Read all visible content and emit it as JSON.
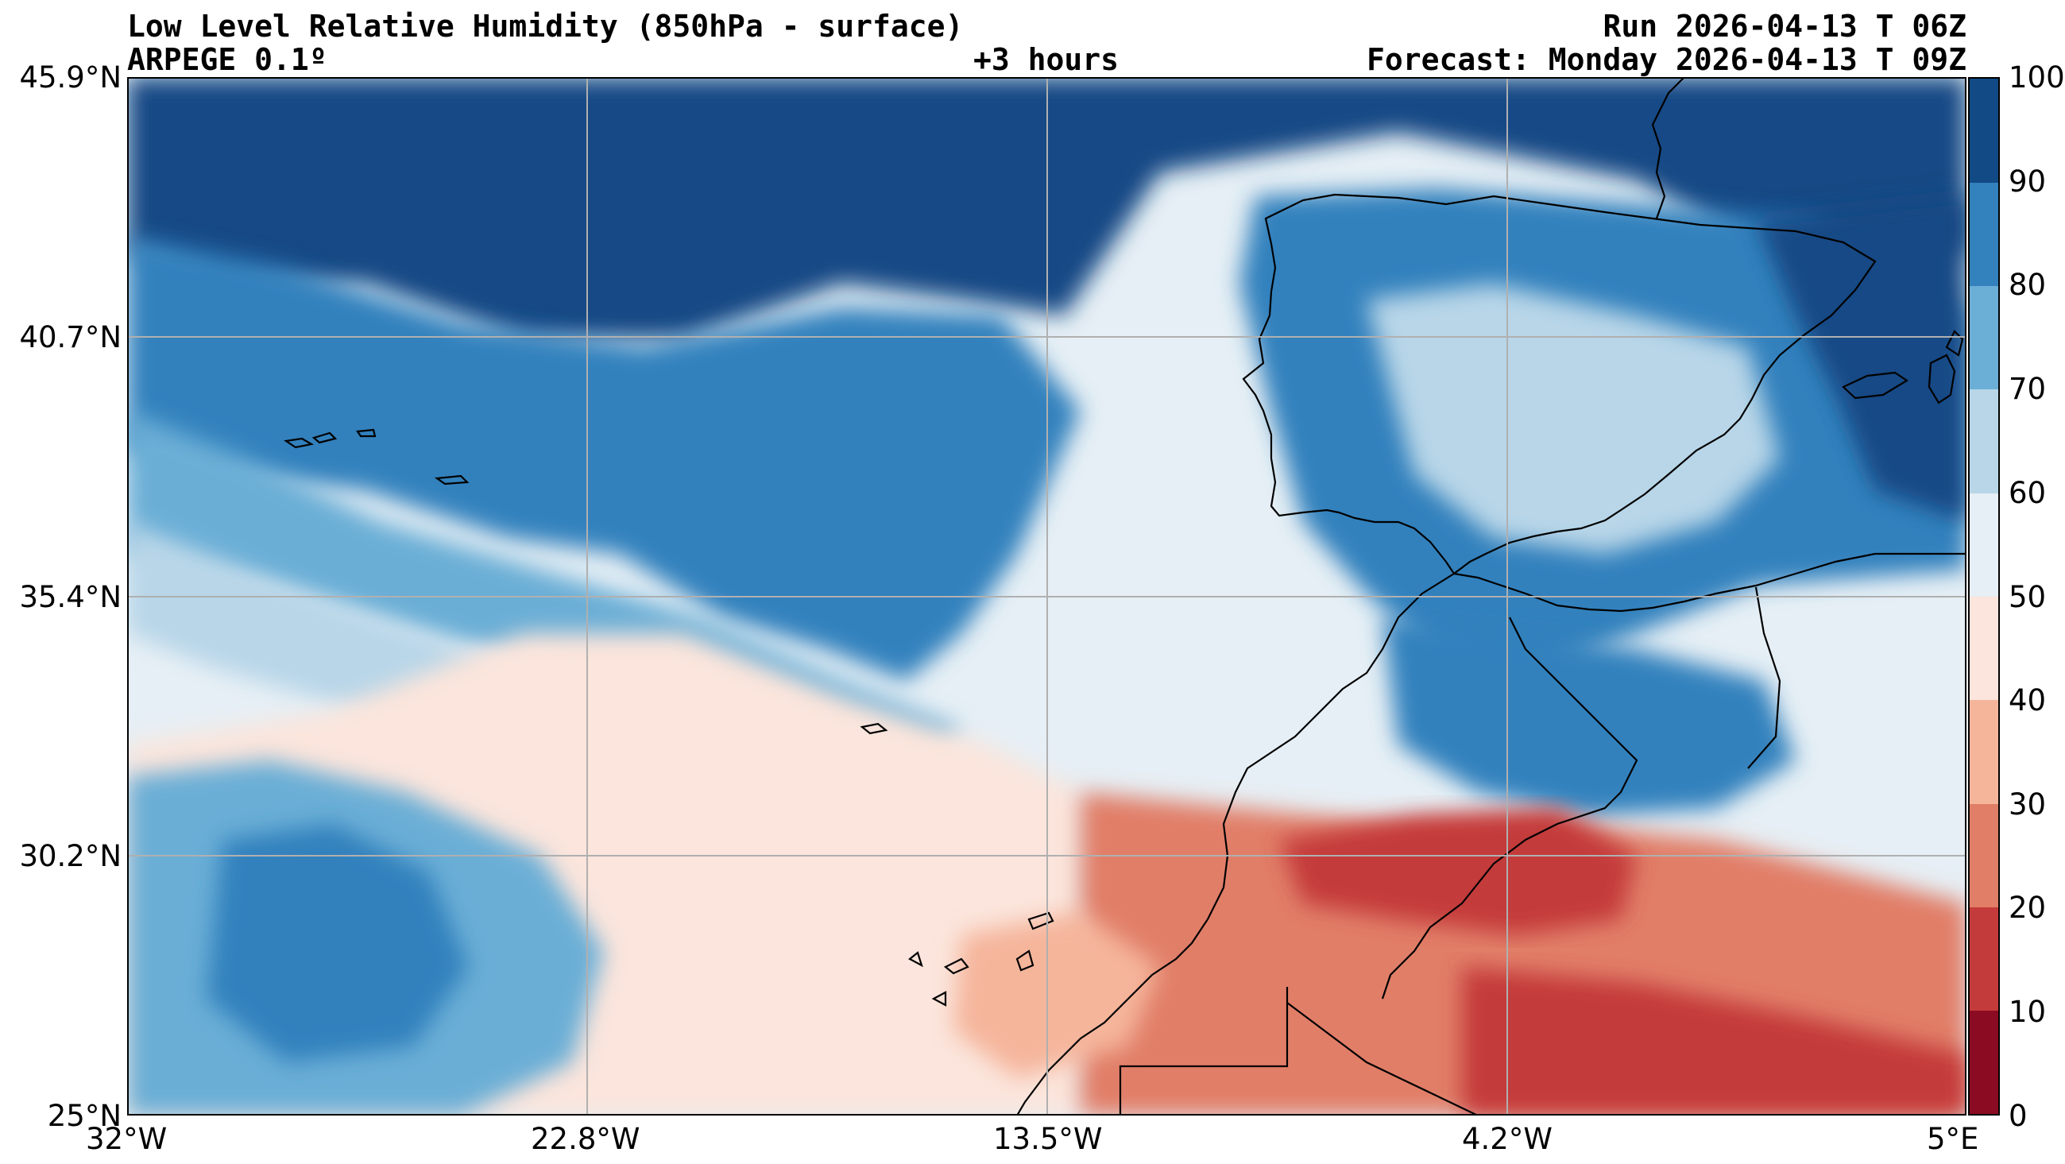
{
  "header": {
    "title": "Low Level Relative Humidity (850hPa - surface)",
    "model": "ARPEGE 0.1º",
    "lead_time": "+3 hours",
    "run": "Run 2026-04-13 T 06Z",
    "forecast": "Forecast: Monday 2026-04-13 T 09Z"
  },
  "map": {
    "lat_labels": [
      "45.9°N",
      "40.7°N",
      "35.4°N",
      "30.2°N",
      "25°N"
    ],
    "lon_labels": [
      "32°W",
      "22.8°W",
      "13.5°W",
      "4.2°W",
      "5°E"
    ],
    "gridlines": true,
    "extent": {
      "lon_min": -32,
      "lon_max": 5,
      "lat_min": 25,
      "lat_max": 45.9
    }
  },
  "colorbar": {
    "labels": [
      "100",
      "90",
      "80",
      "70",
      "60",
      "50",
      "40",
      "30",
      "20",
      "10",
      "0"
    ],
    "bins": [
      {
        "min": 0,
        "max": 10,
        "color": "#8b0b23"
      },
      {
        "min": 10,
        "max": 20,
        "color": "#c43b3b"
      },
      {
        "min": 20,
        "max": 30,
        "color": "#e17e67"
      },
      {
        "min": 30,
        "max": 40,
        "color": "#f5b59b"
      },
      {
        "min": 40,
        "max": 50,
        "color": "#fbe5dc"
      },
      {
        "min": 50,
        "max": 60,
        "color": "#e6eff5"
      },
      {
        "min": 60,
        "max": 70,
        "color": "#b8d6e8"
      },
      {
        "min": 70,
        "max": 80,
        "color": "#6baed6"
      },
      {
        "min": 80,
        "max": 90,
        "color": "#3381bd"
      },
      {
        "min": 90,
        "max": 100,
        "color": "#124a85"
      }
    ]
  }
}
